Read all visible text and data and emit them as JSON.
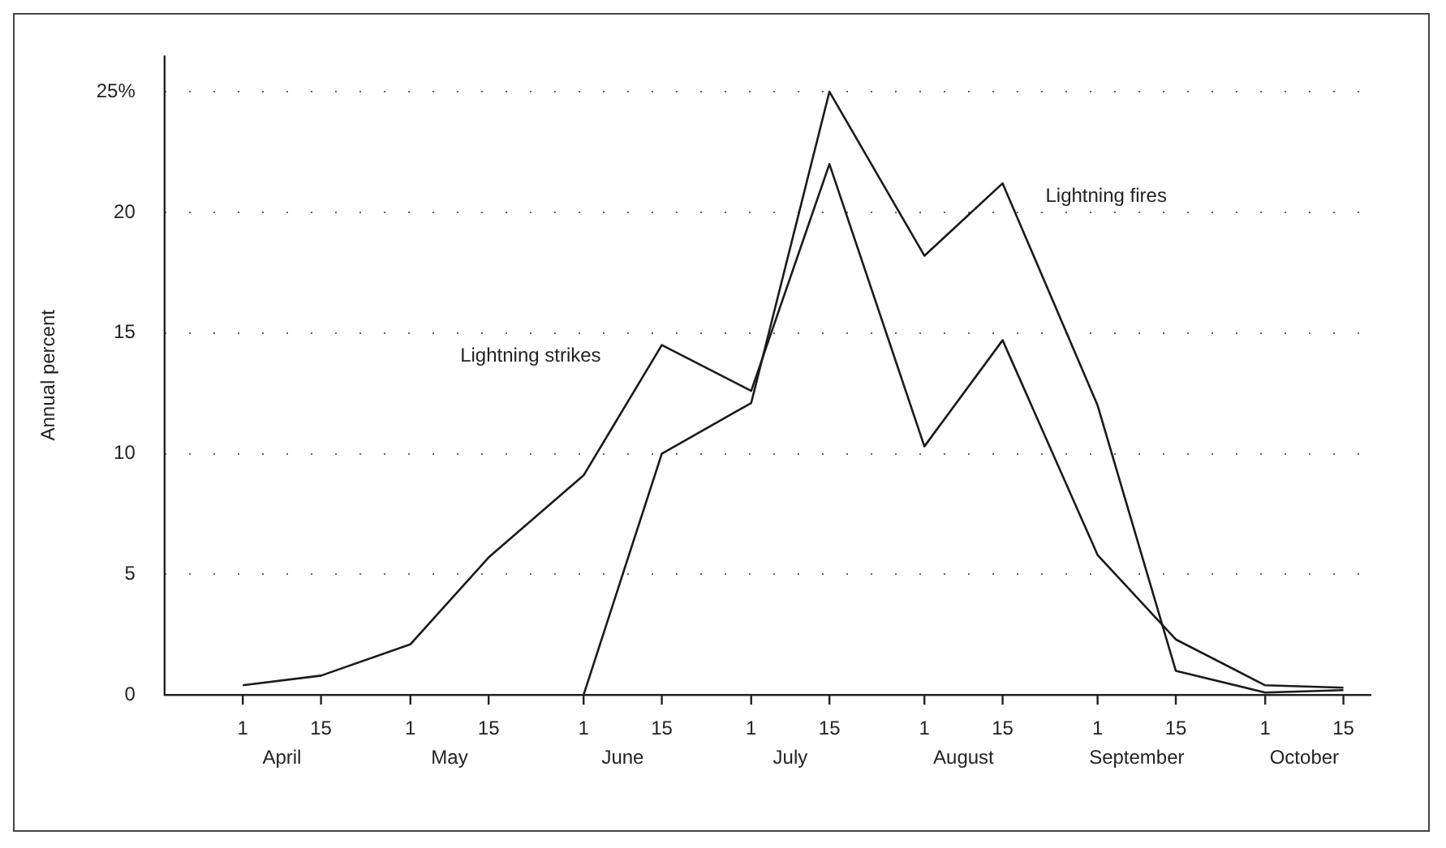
{
  "chart_data": {
    "type": "line",
    "ylabel": "Annual percent",
    "series": [
      {
        "color": "#1a1a1a",
        "x": [
          "--04-01",
          "--04-15",
          "--05-01",
          "--05-15",
          "--06-01",
          "--06-15",
          "--07-01",
          "--07-15",
          "--08-01",
          "--08-15",
          "--09-01",
          "--09-15",
          "--10-01",
          "--10-15"
        ],
        "values": [
          0.4,
          0.8,
          2.1,
          5.7,
          9.1,
          14.5,
          12.6,
          22,
          10.3,
          14.7,
          5.8,
          2.3,
          0.4,
          0.3
        ]
      },
      {
        "color": "#1a1a1a",
        "x": [
          "--06-01",
          "--06-15",
          "--07-01",
          "--07-15",
          "--08-01",
          "--08-15",
          "--09-01",
          "--09-15",
          "--10-01",
          "--10-15"
        ],
        "values": [
          0,
          10,
          12.1,
          25,
          18.2,
          21.2,
          12,
          1,
          0.1,
          0.2
        ]
      }
    ],
    "annotations": [
      "Lightning strikes",
      "Lightning fires"
    ],
    "xlim": [
      "--03-18",
      "--10-20"
    ],
    "xticks": [
      {
        "value": "--04-01",
        "label": "1"
      },
      {
        "value": "--04-15",
        "label": "15"
      },
      {
        "value": "--05-01",
        "label": "1"
      },
      {
        "value": "--05-15",
        "label": "15"
      },
      {
        "value": "--06-01",
        "label": "1"
      },
      {
        "value": "--06-15",
        "label": "15"
      },
      {
        "value": "--07-01",
        "label": "1"
      },
      {
        "value": "--07-15",
        "label": "15"
      },
      {
        "value": "--08-01",
        "label": "1"
      },
      {
        "value": "--08-15",
        "label": "15"
      },
      {
        "value": "--09-01",
        "label": "1"
      },
      {
        "value": "--09-15",
        "label": "15"
      },
      {
        "value": "--10-01",
        "label": "1"
      },
      {
        "value": "--10-15",
        "label": "15"
      }
    ],
    "x2lim": [
      "--03-18",
      "--10-20"
    ],
    "x2ticks": [
      {
        "value": "--04-08",
        "label": "April"
      },
      {
        "value": "--05-08",
        "label": "May"
      },
      {
        "value": "--06-08",
        "label": "June"
      },
      {
        "value": "--07-08",
        "label": "July"
      },
      {
        "value": "--08-08",
        "label": "August"
      },
      {
        "value": "--09-08",
        "label": "September"
      },
      {
        "value": "--10-08",
        "label": "October"
      }
    ],
    "ylim": [
      0,
      26.5
    ],
    "yticks": [
      0,
      5,
      10,
      15,
      20,
      {
        "value": 25,
        "label": "25%"
      }
    ],
    "grid": "y",
    "marker": "none",
    "line_style": "solid",
    "legend": false
  }
}
